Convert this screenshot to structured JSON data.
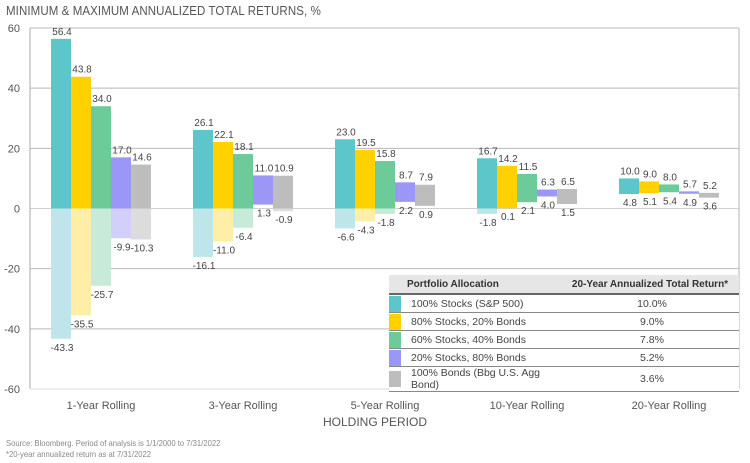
{
  "chart_data": {
    "type": "bar",
    "title": "MINIMUM & MAXIMUM ANNUALIZED TOTAL RETURNS, %",
    "xlabel": "HOLDING PERIOD",
    "ylabel": "",
    "ylim": [
      -60,
      60
    ],
    "yticks": [
      60,
      40,
      20,
      0,
      -20,
      -40,
      -60
    ],
    "grid": true,
    "categories": [
      "1-Year Rolling",
      "3-Year Rolling",
      "5-Year Rolling",
      "10-Year Rolling",
      "20-Year Rolling"
    ],
    "series": [
      {
        "name": "100% Stocks (S&P 500)",
        "color": "#5CC6CB",
        "light_color": "#BEE6EA",
        "max": [
          56.4,
          26.1,
          23.0,
          16.7,
          10.0
        ],
        "min": [
          -43.3,
          -16.1,
          -6.6,
          -1.8,
          4.8
        ],
        "annualized_20yr": "10.0%"
      },
      {
        "name": "80% Stocks, 20% Bonds",
        "color": "#FFD100",
        "light_color": "#FFEFA6",
        "max": [
          43.8,
          22.1,
          19.5,
          14.2,
          9.0
        ],
        "min": [
          -35.5,
          -11.0,
          -4.3,
          0.1,
          5.1
        ],
        "annualized_20yr": "9.0%"
      },
      {
        "name": "60% Stocks, 40% Bonds",
        "color": "#6DCB9A",
        "light_color": "#C7EBD8",
        "max": [
          34.0,
          18.1,
          15.8,
          11.5,
          8.0
        ],
        "min": [
          -25.7,
          -6.4,
          -1.8,
          2.1,
          5.4
        ],
        "annualized_20yr": "7.8%"
      },
      {
        "name": "20% Stocks, 80% Bonds",
        "color": "#9B97F7",
        "light_color": "#D2D0FB",
        "max": [
          17.0,
          11.0,
          8.7,
          6.3,
          5.7
        ],
        "min": [
          -9.9,
          1.3,
          2.2,
          4.0,
          4.9
        ],
        "annualized_20yr": "5.2%"
      },
      {
        "name": "100% Bonds (Bbg U.S. Agg Bond)",
        "color": "#BDBDBD",
        "light_color": "#DCDCDC",
        "max": [
          14.6,
          10.9,
          7.9,
          6.5,
          5.2
        ],
        "min": [
          -10.3,
          -0.9,
          0.9,
          1.5,
          3.6
        ],
        "annualized_20yr": "3.6%"
      }
    ],
    "legend": {
      "placement": "bottom-right",
      "headers": [
        "Portfolio Allocation",
        "20-Year Annualized Total Return*"
      ]
    }
  },
  "footnotes": {
    "source": "Source: Bloomberg. Period of analysis is 1/1/2000 to 7/31/2022",
    "note": "*20-year annualized return as at 7/31/2022"
  }
}
